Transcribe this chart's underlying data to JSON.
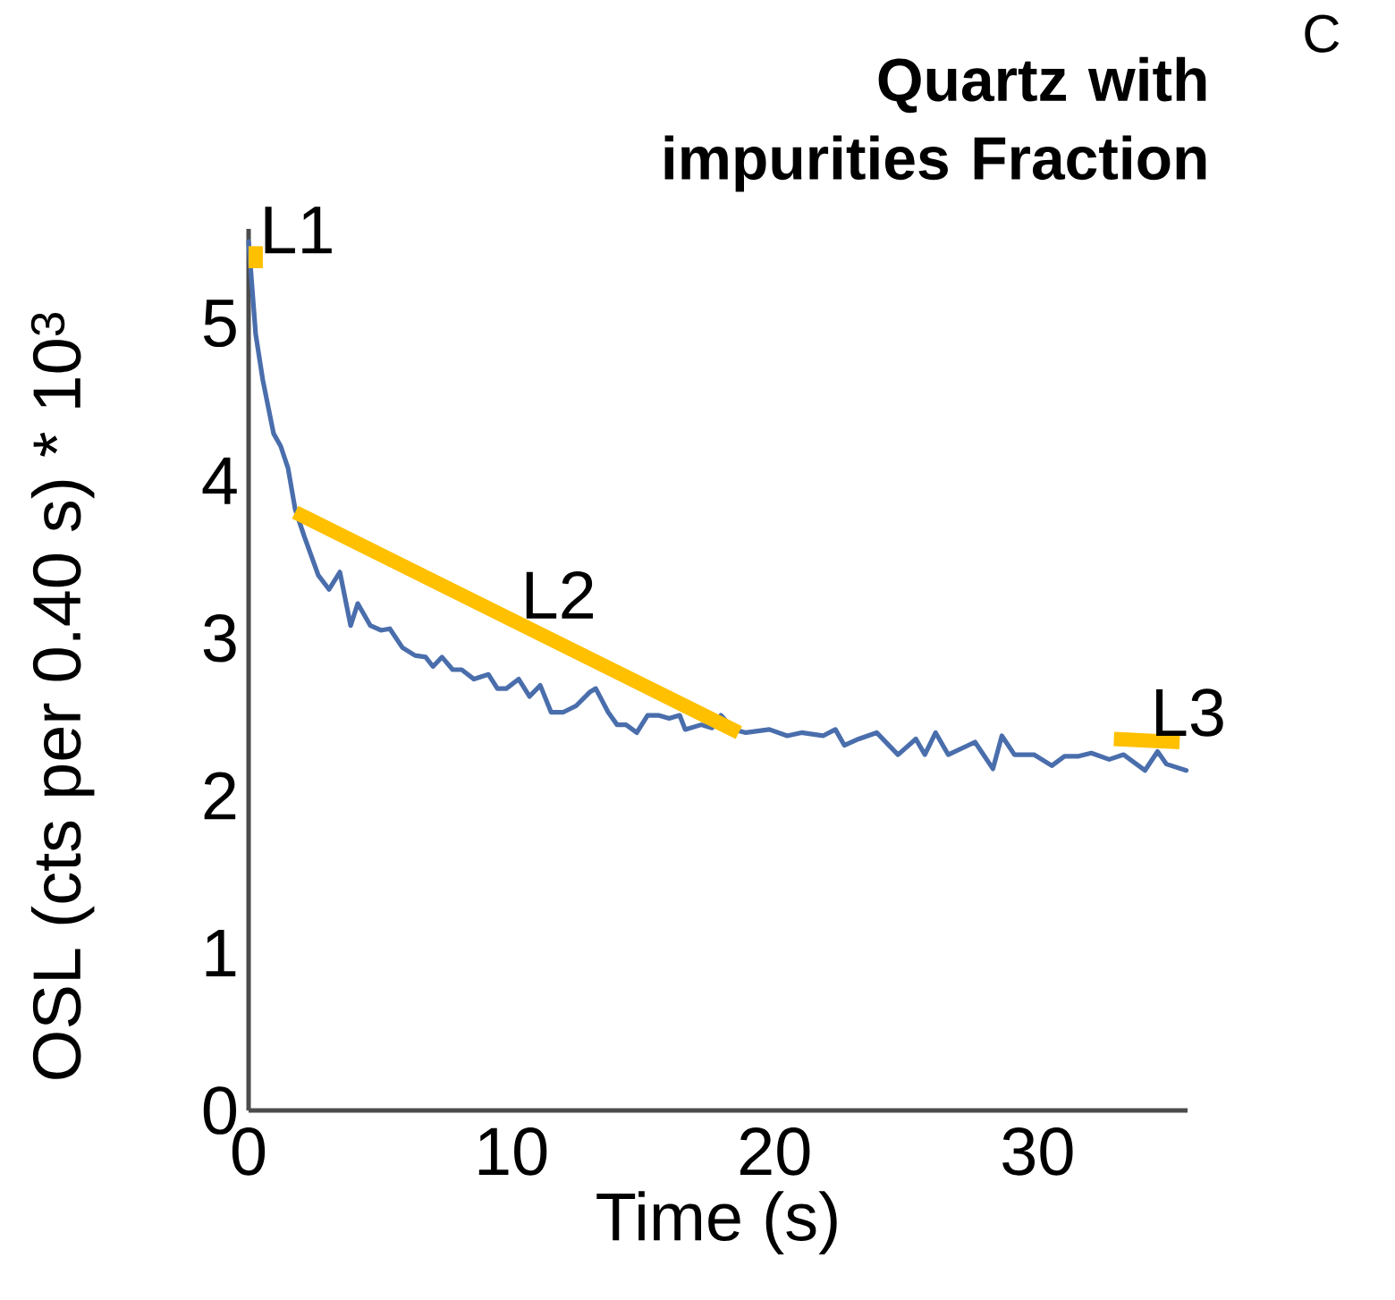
{
  "chart_data": {
    "type": "line",
    "title": "Quartz with impurities Fraction",
    "xlabel": "Time (s)",
    "ylabel": "OSL (cts per 0.40 s) * 10$^{3}$",
    "xlim": [
      0,
      35.7
    ],
    "xticks": [
      0,
      10,
      20,
      30
    ],
    "ylim": [
      0,
      5.6
    ],
    "yticks": [
      0,
      1,
      2,
      3,
      4,
      5
    ],
    "series": [
      {
        "color": "#4a6eac",
        "x": [
          0,
          0.27,
          0.54,
          0.95,
          1.22,
          1.5,
          1.77,
          2.11,
          2.65,
          3.06,
          3.47,
          3.88,
          4.15,
          4.63,
          5.03,
          5.37,
          5.85,
          6.33,
          6.73,
          7.01,
          7.35,
          7.76,
          8.1,
          8.57,
          9.12,
          9.46,
          9.8,
          10.27,
          10.68,
          11.09,
          11.5,
          11.97,
          12.45,
          12.99,
          13.2,
          13.67,
          14.01,
          14.35,
          14.76,
          15.17,
          15.58,
          15.99,
          16.39,
          16.6,
          16.87,
          17.21,
          17.62,
          17.96,
          18.44,
          18.91,
          19.8,
          20.48,
          21.02,
          21.84,
          22.31,
          22.65,
          23.2,
          23.88,
          24.69,
          25.37,
          25.71,
          26.12,
          26.6,
          27.62,
          28.3,
          28.64,
          29.12,
          29.86,
          30.54,
          31.02,
          31.56,
          32.04,
          32.72,
          33.27,
          34.08,
          34.56,
          34.9,
          35.65
        ],
        "values": [
          5.52,
          4.93,
          4.64,
          4.3,
          4.22,
          4.08,
          3.82,
          3.65,
          3.4,
          3.31,
          3.42,
          3.08,
          3.22,
          3.08,
          3.05,
          3.06,
          2.94,
          2.89,
          2.88,
          2.82,
          2.88,
          2.8,
          2.8,
          2.74,
          2.77,
          2.68,
          2.68,
          2.74,
          2.63,
          2.7,
          2.53,
          2.53,
          2.57,
          2.66,
          2.68,
          2.53,
          2.45,
          2.45,
          2.4,
          2.51,
          2.51,
          2.49,
          2.51,
          2.42,
          null,
          2.45,
          2.43,
          2.51,
          2.42,
          2.4,
          2.42,
          2.38,
          2.4,
          2.38,
          2.42,
          2.32,
          2.36,
          2.4,
          2.26,
          2.36,
          2.26,
          2.4,
          2.26,
          2.34,
          2.17,
          2.38,
          2.26,
          2.26,
          2.19,
          2.25,
          2.25,
          2.27,
          2.23,
          2.26,
          2.16,
          2.28,
          2.2,
          2.16
        ]
      },
      {
        "name": "L1",
        "color": "#ffc000",
        "x": [
          0.27,
          0.27
        ],
        "values": [
          5.35,
          5.49
        ]
      },
      {
        "name": "L2",
        "color": "#ffc000",
        "x": [
          1.77,
          18.64
        ],
        "values": [
          3.8,
          2.4
        ]
      },
      {
        "name": "L3",
        "color": "#ffc000",
        "x": [
          32.9,
          35.4
        ],
        "values": [
          2.36,
          2.34
        ]
      }
    ],
    "annotations": [
      "C"
    ]
  }
}
